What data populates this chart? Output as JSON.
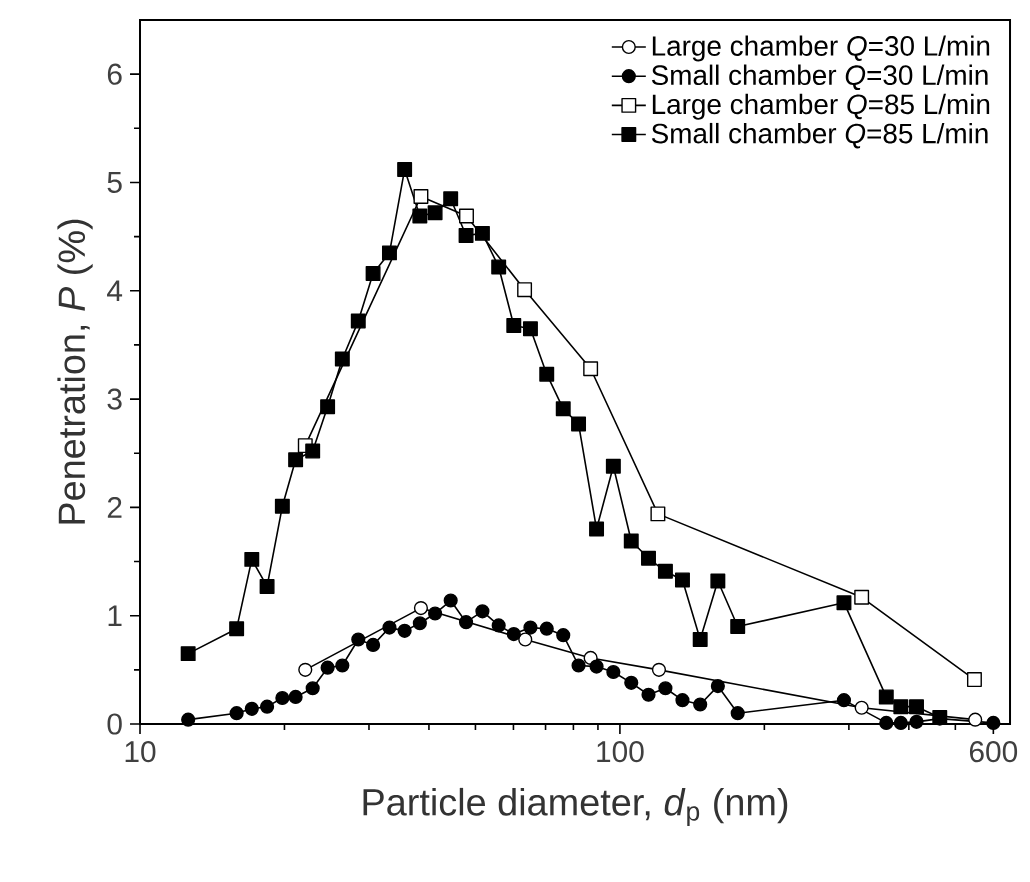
{
  "chart_data": {
    "type": "line",
    "xlabel": "Particle diameter, *d*$_{p}$ (nm)",
    "ylabel": "Penetration, *P* (%)",
    "log": "x",
    "xlim": [
      10,
      650
    ],
    "ylim": [
      0,
      6.5
    ],
    "xticks": [
      10,
      {
        "value": 20,
        "label": null
      },
      {
        "value": 30,
        "label": null
      },
      {
        "value": 40,
        "label": null
      },
      {
        "value": 50,
        "label": null
      },
      {
        "value": 60,
        "label": null
      },
      {
        "value": 70,
        "label": null
      },
      {
        "value": 80,
        "label": null
      },
      {
        "value": 90,
        "label": null
      },
      100,
      {
        "value": 200,
        "label": null
      },
      {
        "value": 300,
        "label": null
      },
      {
        "value": 400,
        "label": null
      },
      {
        "value": 500,
        "label": null
      },
      600
    ],
    "yticks": [
      0,
      {
        "value": 0.5,
        "label": null
      },
      1,
      {
        "value": 1.5,
        "label": null
      },
      2,
      {
        "value": 2.5,
        "label": null
      },
      3,
      {
        "value": 3.5,
        "label": null
      },
      4,
      {
        "value": 4.5,
        "label": null
      },
      5,
      {
        "value": 5.5,
        "label": null
      },
      6
    ],
    "legend": "top right",
    "grid": false,
    "line_style": "solid",
    "series": [
      {
        "name": "Large chamber *Q*=30 L/min",
        "color": "#000000",
        "marker": "circle",
        "colors": [
          "#ffffff",
          "#ffffff",
          "#ffffff",
          "#ffffff",
          "#ffffff",
          "#ffffff",
          "#ffffff"
        ],
        "x": [
          22.1,
          38.5,
          63.5,
          86.9,
          120.6,
          319,
          550
        ],
        "values": [
          0.5,
          1.07,
          0.78,
          0.61,
          0.5,
          0.15,
          0.04
        ]
      },
      {
        "name": "Small chamber *Q*=30 L/min",
        "color": "#000000",
        "marker": "circle",
        "x": [
          12.6,
          15.9,
          17.1,
          18.4,
          19.8,
          21.1,
          22.9,
          24.6,
          26.4,
          28.5,
          30.6,
          33.1,
          35.6,
          38.3,
          41.2,
          44.4,
          47.8,
          51.7,
          55.9,
          60.1,
          65.1,
          70.4,
          76.2,
          82.0,
          89.4,
          96.9,
          105.6,
          114.7,
          124.4,
          135,
          147,
          160,
          176,
          293,
          359,
          385,
          415,
          464,
          600
        ],
        "values": [
          0.04,
          0.1,
          0.14,
          0.16,
          0.24,
          0.25,
          0.33,
          0.52,
          0.54,
          0.78,
          0.73,
          0.89,
          0.86,
          0.93,
          1.02,
          1.14,
          0.94,
          1.04,
          0.91,
          0.83,
          0.89,
          0.88,
          0.82,
          0.54,
          0.53,
          0.48,
          0.38,
          0.27,
          0.33,
          0.22,
          0.18,
          0.35,
          0.1,
          0.22,
          0.01,
          0.01,
          0.02,
          0.05,
          0.01
        ]
      },
      {
        "name": "Large chamber *Q*=85 L/min",
        "color": "#000000",
        "marker": "square",
        "colors": [
          "#ffffff",
          "#ffffff",
          "#ffffff",
          "#ffffff",
          "#ffffff",
          "#ffffff",
          "#ffffff",
          "#ffffff"
        ],
        "x": [
          22.1,
          38.5,
          47.9,
          63.3,
          86.9,
          120,
          319,
          548
        ],
        "values": [
          2.57,
          4.87,
          4.69,
          4.01,
          3.28,
          1.94,
          1.17,
          0.41
        ]
      },
      {
        "name": "Small chamber *Q*=85 L/min",
        "color": "#000000",
        "marker": "square",
        "x": [
          12.6,
          15.9,
          17.1,
          18.4,
          19.8,
          21.1,
          22.9,
          24.6,
          26.4,
          28.5,
          30.6,
          33.1,
          35.6,
          38.3,
          41.2,
          44.4,
          47.8,
          51.7,
          55.9,
          60.1,
          65.1,
          70.4,
          76.2,
          82.0,
          89.4,
          96.9,
          105.6,
          114.7,
          124.4,
          135,
          147,
          160,
          176,
          293,
          359,
          385,
          415,
          464
        ],
        "values": [
          0.65,
          0.88,
          1.52,
          1.27,
          2.01,
          2.44,
          2.52,
          2.93,
          3.37,
          3.72,
          4.16,
          4.35,
          5.12,
          4.69,
          4.72,
          4.85,
          4.51,
          4.53,
          4.22,
          3.68,
          3.65,
          3.23,
          2.91,
          2.77,
          1.8,
          2.38,
          1.69,
          1.53,
          1.41,
          1.33,
          0.78,
          1.32,
          0.9,
          1.12,
          0.25,
          0.16,
          0.16,
          0.06
        ]
      }
    ]
  }
}
